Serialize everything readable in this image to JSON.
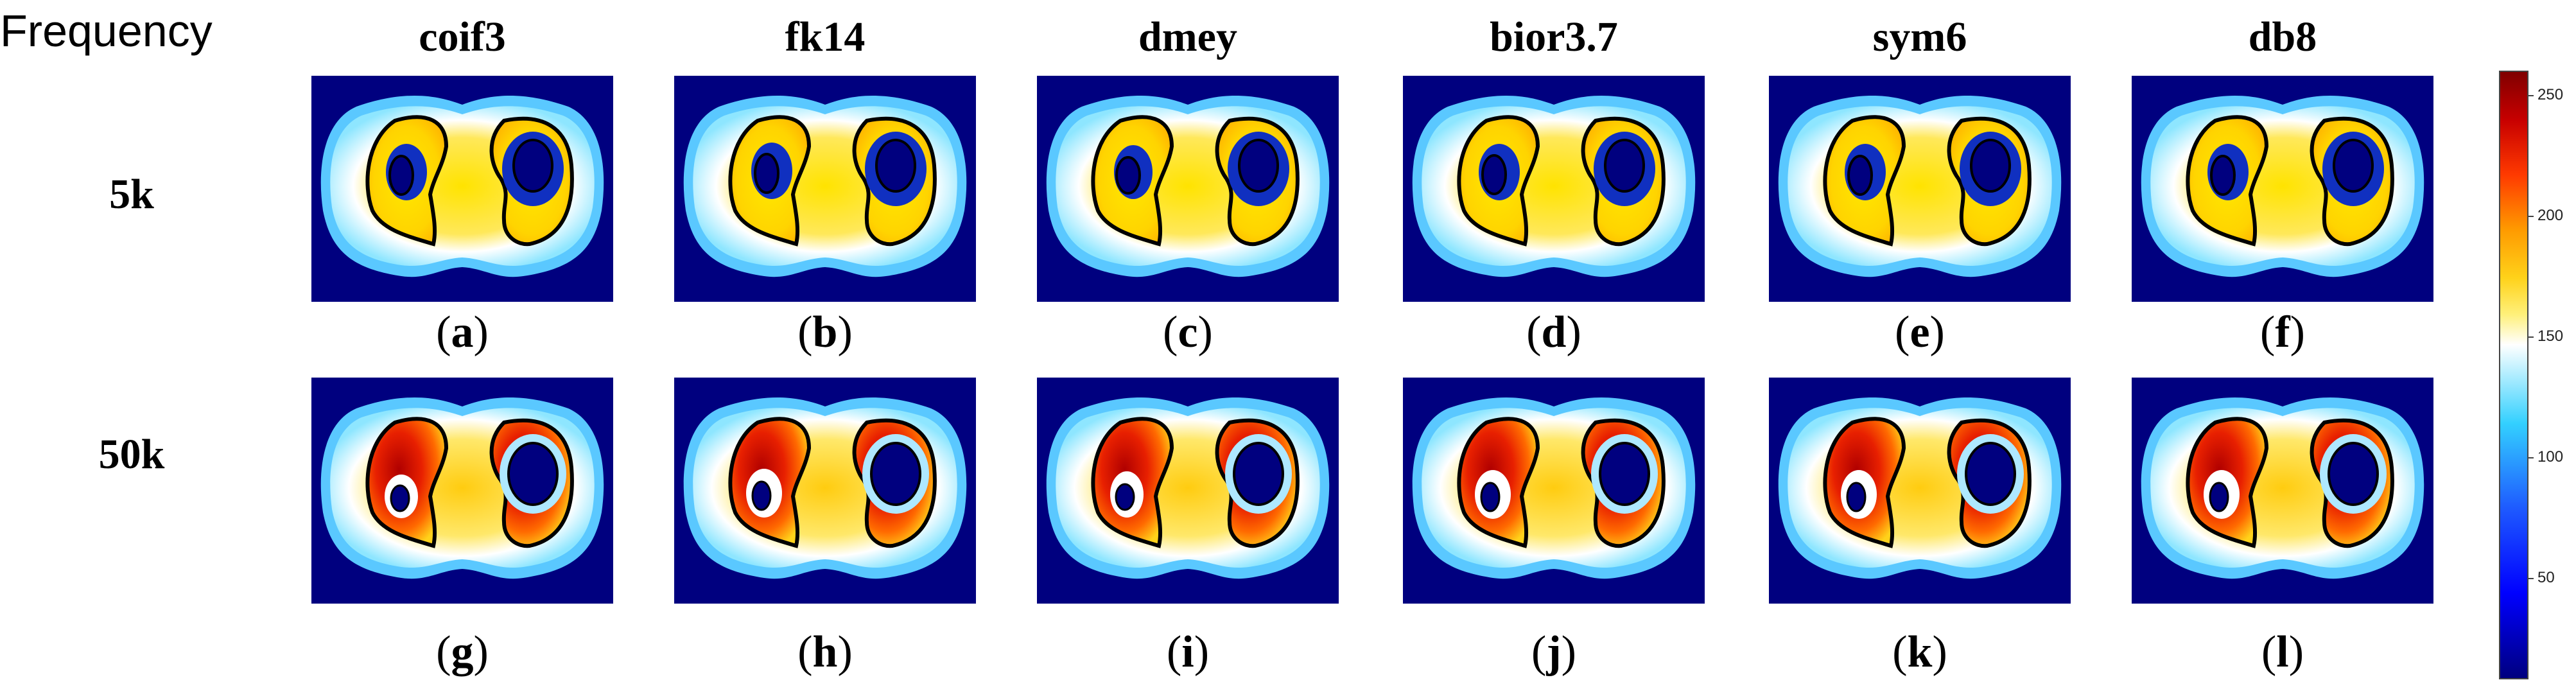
{
  "header": {
    "frequency_label": "Frequency"
  },
  "columns": [
    "coif3",
    "fk14",
    "dmey",
    "bior3.7",
    "sym6",
    "db8"
  ],
  "rows": [
    {
      "label": "5k",
      "captions": [
        "a",
        "b",
        "c",
        "d",
        "e",
        "f"
      ]
    },
    {
      "label": "50k",
      "captions": [
        "g",
        "h",
        "i",
        "j",
        "k",
        "l"
      ]
    }
  ],
  "colorbar": {
    "ticks": [
      "250",
      "200",
      "150",
      "100",
      "50"
    ]
  }
}
